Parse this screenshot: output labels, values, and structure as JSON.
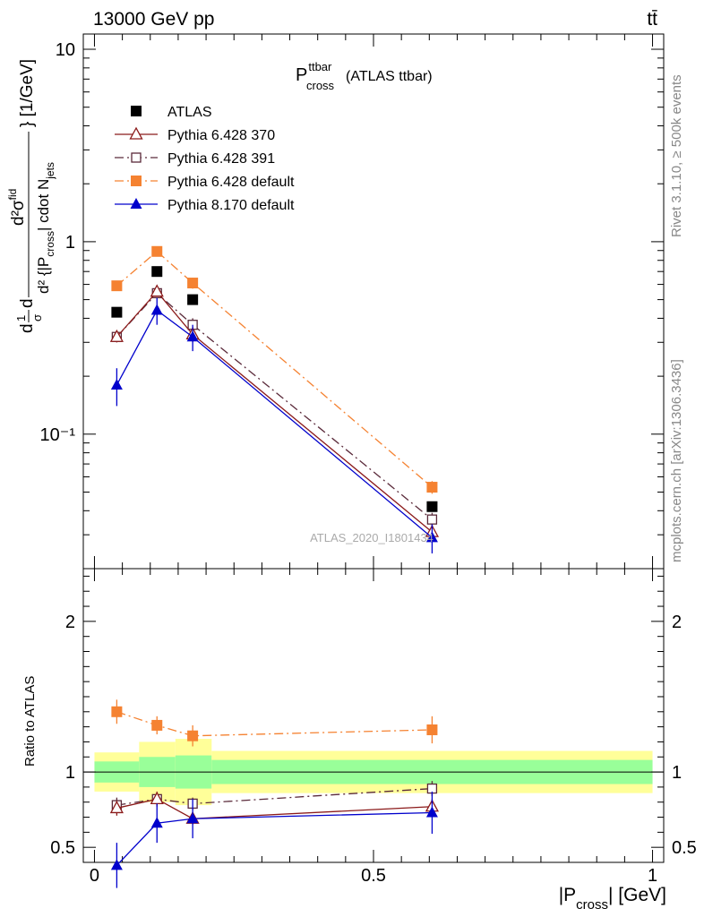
{
  "header": {
    "energy_label": "13000 GeV pp",
    "process_label": "tt̄"
  },
  "side_texts": {
    "rivet": "Rivet 3.1.10, ≥ 500k events",
    "source": "mcplots.cern.ch [arXiv:1306.3436]"
  },
  "plot_title": {
    "main": "P",
    "sup": "ttbar",
    "sub": "cross",
    "suffix": "(ATLAS ttbar)"
  },
  "analysis_id": "ATLAS_2020_I1801434",
  "ylabel_main": "} [1/GeV]",
  "ylabel_ratio": "Ratio to ATLAS",
  "xlabel": {
    "pre": "|P",
    "sub": "cross",
    "post": "| [GeV]"
  },
  "legend": [
    {
      "name": "ATLAS",
      "color": "#000000",
      "marker": "square-filled",
      "line": "none"
    },
    {
      "name": "Pythia 6.428 370",
      "color": "#8b1a1a",
      "marker": "triangle-open",
      "line": "solid"
    },
    {
      "name": "Pythia 6.428 391",
      "color": "#5a2a3a",
      "marker": "square-open",
      "line": "dashdot"
    },
    {
      "name": "Pythia 6.428 default",
      "color": "#f58231",
      "marker": "square-filled",
      "line": "dashdot"
    },
    {
      "name": "Pythia 8.170 default",
      "color": "#0000cc",
      "marker": "triangle-filled",
      "line": "solid"
    }
  ],
  "chart_data": {
    "type": "scatter",
    "x": [
      0.04,
      0.112,
      0.176,
      0.605
    ],
    "xlim": [
      -0.02,
      1.02
    ],
    "xticks": [
      "0",
      "0.5",
      "1"
    ],
    "main_panel": {
      "yscale": "log",
      "ylim": [
        0.02,
        12
      ],
      "yticks": [
        "10",
        "1",
        "10⁻¹"
      ],
      "series": [
        {
          "name": "ATLAS",
          "values": [
            0.43,
            0.7,
            0.5,
            0.042
          ],
          "errors": [
            0.0,
            0.0,
            0.0,
            0.0
          ]
        },
        {
          "name": "Pythia 6.428 370",
          "values": [
            0.32,
            0.55,
            0.33,
            0.031
          ],
          "errors": [
            0.02,
            0.03,
            0.03,
            0.003
          ]
        },
        {
          "name": "Pythia 6.428 391",
          "values": [
            0.32,
            0.54,
            0.37,
            0.036
          ],
          "errors": [
            0.02,
            0.03,
            0.03,
            0.003
          ]
        },
        {
          "name": "Pythia 6.428 default",
          "values": [
            0.59,
            0.89,
            0.61,
            0.053
          ],
          "errors": [
            0.03,
            0.04,
            0.04,
            0.004
          ]
        },
        {
          "name": "Pythia 8.170 default",
          "values": [
            0.18,
            0.44,
            0.32,
            0.029
          ],
          "errors": [
            0.04,
            0.07,
            0.05,
            0.005
          ]
        }
      ]
    },
    "ratio_panel": {
      "ylim": [
        0.4,
        2.35
      ],
      "yticks": [
        "0.5",
        "1",
        "2"
      ],
      "reference_band_bins": [
        0.0,
        0.08,
        0.145,
        0.21,
        1.0
      ],
      "reference_band_inner": [
        0.07,
        0.1,
        0.11,
        0.08
      ],
      "reference_band_outer": [
        0.13,
        0.2,
        0.22,
        0.14
      ],
      "series": [
        {
          "name": "Pythia 6.428 370",
          "values": [
            0.76,
            0.82,
            0.69,
            0.77
          ],
          "errors": [
            0.05,
            0.05,
            0.04,
            0.05
          ]
        },
        {
          "name": "Pythia 6.428 391",
          "values": [
            0.78,
            0.82,
            0.79,
            0.89
          ],
          "errors": [
            0.05,
            0.04,
            0.04,
            0.05
          ]
        },
        {
          "name": "Pythia 6.428 default",
          "values": [
            1.4,
            1.31,
            1.24,
            1.28
          ],
          "errors": [
            0.08,
            0.06,
            0.07,
            0.09
          ]
        },
        {
          "name": "Pythia 8.170 default",
          "values": [
            0.38,
            0.66,
            0.69,
            0.73
          ],
          "errors": [
            0.15,
            0.13,
            0.13,
            0.14
          ]
        }
      ]
    }
  }
}
